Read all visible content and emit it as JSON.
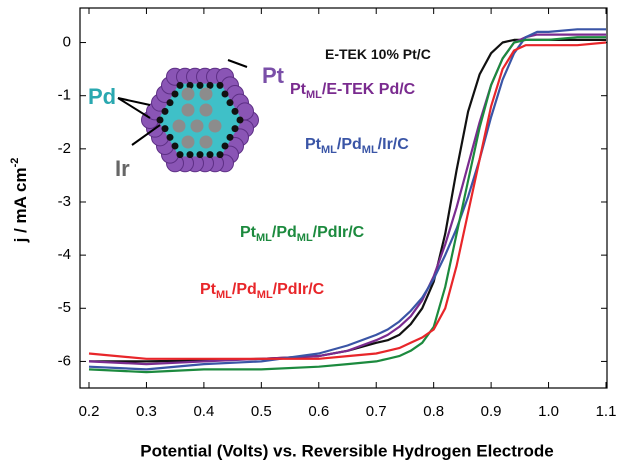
{
  "chart_data": {
    "type": "line",
    "x_label": "Potential (Volts) vs. Reversible Hydrogen Electrode",
    "y_label_parts": [
      {
        "text": "j / mA cm"
      },
      {
        "text": "-2",
        "sup": true
      }
    ],
    "xlim": [
      0.2,
      1.1
    ],
    "ylim": [
      -6.5,
      0.65
    ],
    "xticks": [
      0.2,
      0.3,
      0.4,
      0.5,
      0.6,
      0.7,
      0.8,
      0.9,
      {
        "value": 1,
        "label": "1.0"
      },
      1.1
    ],
    "yticks": [
      0,
      -1,
      -2,
      -3,
      -4,
      -5,
      -6
    ],
    "x": [
      0.2,
      0.3,
      0.4,
      0.5,
      0.6,
      0.65,
      0.7,
      0.72,
      0.74,
      0.76,
      0.78,
      0.8,
      0.82,
      0.84,
      0.86,
      0.88,
      0.9,
      0.92,
      0.94,
      0.96,
      0.98,
      1.0,
      1.05,
      1.1
    ],
    "series": [
      {
        "name_parts": [
          {
            "text": "E-TEK 10% Pt/C"
          }
        ],
        "color": "#111111",
        "values": [
          -6.0,
          -6.0,
          -5.98,
          -5.95,
          -5.9,
          -5.8,
          -5.65,
          -5.6,
          -5.5,
          -5.3,
          -5.0,
          -4.5,
          -3.6,
          -2.4,
          -1.3,
          -0.6,
          -0.2,
          0.0,
          0.05,
          0.05,
          0.05,
          0.05,
          0.05,
          0.05
        ]
      },
      {
        "name_parts": [
          {
            "text": "Pt"
          },
          {
            "text": "ML",
            "sub": true
          },
          {
            "text": "/E-TEK Pd/C"
          }
        ],
        "color": "#7a2b8f",
        "values": [
          -6.0,
          -6.05,
          -6.0,
          -5.95,
          -5.9,
          -5.8,
          -5.6,
          -5.5,
          -5.35,
          -5.15,
          -4.85,
          -4.4,
          -3.8,
          -3.1,
          -2.3,
          -1.5,
          -0.8,
          -0.3,
          0.0,
          0.1,
          0.15,
          0.15,
          0.15,
          0.15
        ]
      },
      {
        "name_parts": [
          {
            "text": "Pt"
          },
          {
            "text": "ML",
            "sub": true
          },
          {
            "text": "/Pd"
          },
          {
            "text": "ML",
            "sub": true
          },
          {
            "text": "/Ir/C"
          }
        ],
        "color": "#3a55a6",
        "values": [
          -6.1,
          -6.15,
          -6.05,
          -6.0,
          -5.85,
          -5.7,
          -5.5,
          -5.4,
          -5.25,
          -5.05,
          -4.8,
          -4.45,
          -4.0,
          -3.5,
          -2.9,
          -2.2,
          -1.4,
          -0.7,
          -0.2,
          0.1,
          0.2,
          0.2,
          0.25,
          0.25
        ]
      },
      {
        "name_parts": [
          {
            "text": "Pt"
          },
          {
            "text": "ML",
            "sub": true
          },
          {
            "text": "/Pd"
          },
          {
            "text": "ML",
            "sub": true
          },
          {
            "text": "/PdIr/C"
          }
        ],
        "color": "#1c8a3e",
        "values": [
          -6.15,
          -6.2,
          -6.15,
          -6.15,
          -6.1,
          -6.05,
          -6.0,
          -5.95,
          -5.9,
          -5.8,
          -5.65,
          -5.35,
          -4.6,
          -3.6,
          -2.6,
          -1.6,
          -0.8,
          -0.3,
          0.0,
          0.05,
          0.05,
          0.05,
          0.1,
          0.1
        ]
      },
      {
        "name_parts": [
          {
            "text": "Pt"
          },
          {
            "text": "ML",
            "sub": true
          },
          {
            "text": "/Pd"
          },
          {
            "text": "ML",
            "sub": true
          },
          {
            "text": "/PdIr/C"
          }
        ],
        "color": "#e8262a",
        "values": [
          -5.85,
          -5.95,
          -5.95,
          -5.95,
          -5.95,
          -5.9,
          -5.85,
          -5.8,
          -5.75,
          -5.65,
          -5.55,
          -5.4,
          -5.0,
          -4.2,
          -3.2,
          -2.2,
          -1.2,
          -0.5,
          -0.15,
          -0.05,
          -0.05,
          -0.05,
          -0.05,
          0.0
        ]
      }
    ],
    "inset_labels": [
      "Pd",
      "Ir",
      "Pt"
    ]
  }
}
